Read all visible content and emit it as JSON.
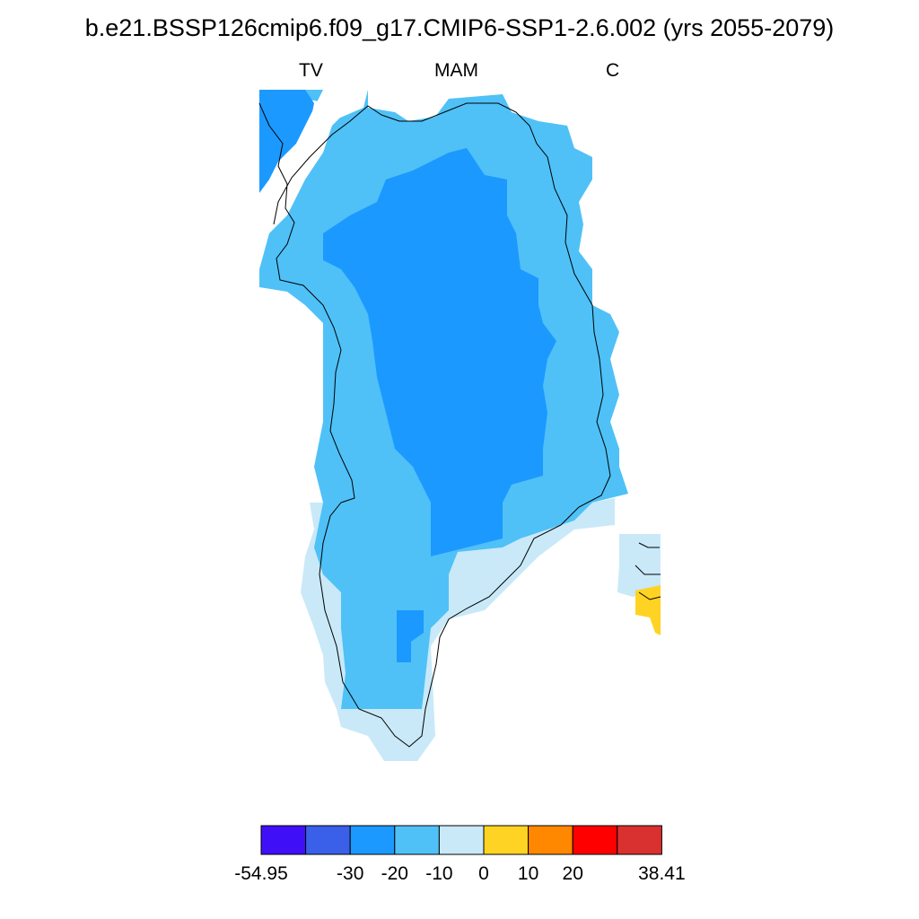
{
  "title": "b.e21.BSSP126cmip6.f09_g17.CMIP6-SSP1-2.6.002 (yrs 2055-2079)",
  "labels": {
    "left": "TV",
    "center": "MAM",
    "right": "C"
  },
  "colors": {
    "bin_-50": "#3F10F7",
    "bin_-40": "#3A5FE8",
    "bin_-30": "#1B99FF",
    "bin_-20": "#4FC1F7",
    "bin_-10": "#C9E9F8",
    "bin_0": "#FFD324",
    "bin_10": "#FF8800",
    "bin_20": "#FF0000",
    "bin_30": "#D93030",
    "coastline": "#000000"
  },
  "colorbar": {
    "colors": [
      "#3F10F7",
      "#3A5FE8",
      "#1B99FF",
      "#4FC1F7",
      "#C9E9F8",
      "#FFD324",
      "#FF8800",
      "#FF0000",
      "#D93030"
    ],
    "tick_labels": [
      "-54.95",
      "-30",
      "-20",
      "-10",
      "0",
      "10",
      "20",
      "38.41"
    ],
    "tick_boundary_index": [
      0,
      2,
      3,
      4,
      5,
      6,
      7,
      9
    ],
    "min": -54.95,
    "max": 38.41
  }
}
